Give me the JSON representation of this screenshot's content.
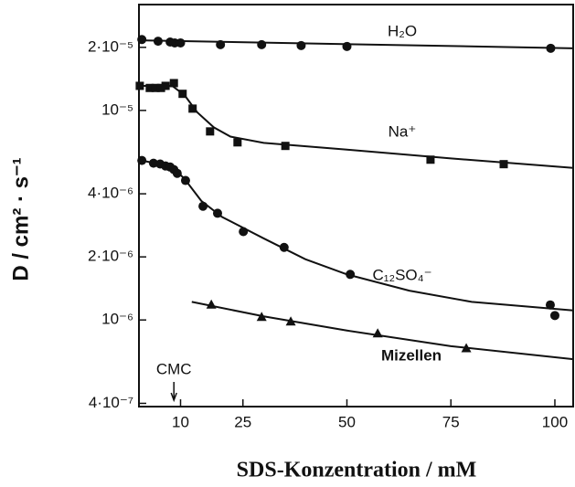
{
  "chart_data": {
    "type": "scatter",
    "xlabel": "SDS-Konzentration / mM",
    "ylabel": "D / cm² · s⁻¹",
    "yscale": "log",
    "grid": false,
    "color": "#111111",
    "xlim": [
      0,
      104.4
    ],
    "ylim": [
      3.86e-07,
      3.2e-05
    ],
    "xticks": [
      10,
      25,
      50,
      75,
      100
    ],
    "yticks": [
      {
        "value": 2e-05,
        "label": "2·10⁻⁵"
      },
      {
        "value": 1e-05,
        "label": "10⁻⁵"
      },
      {
        "value": 4e-06,
        "label": "4·10⁻⁶"
      },
      {
        "value": 2e-06,
        "label": "2·10⁻⁶"
      },
      {
        "value": 1e-06,
        "label": "10⁻⁶"
      },
      {
        "value": 4e-07,
        "label": "4·10⁻⁷"
      }
    ],
    "annotations": [
      {
        "text": "CMC",
        "x": 8.4
      }
    ],
    "series": [
      {
        "name": "H₂O",
        "marker": "circle",
        "x": [
          0.7,
          4.6,
          7.5,
          8.6,
          10,
          19.6,
          29.5,
          39,
          50,
          99
        ],
        "values": [
          2.18e-05,
          2.14e-05,
          2.12e-05,
          2.1e-05,
          2.1e-05,
          2.06e-05,
          2.06e-05,
          2.04e-05,
          2.02e-05,
          1.98e-05
        ],
        "fit": {
          "x": [
            0,
            104.4
          ],
          "values": [
            2.16e-05,
            1.98e-05
          ]
        }
      },
      {
        "name": "Na⁺",
        "marker": "square",
        "x": [
          0.2,
          2.6,
          4,
          5.3,
          6.4,
          8.4,
          10.5,
          12.9,
          17.1,
          23.7,
          35.2,
          70.1,
          87.7
        ],
        "values": [
          1.31e-05,
          1.28e-05,
          1.28e-05,
          1.28e-05,
          1.31e-05,
          1.35e-05,
          1.2e-05,
          1.02e-05,
          7.94e-06,
          7.04e-06,
          6.77e-06,
          5.82e-06,
          5.54e-06
        ],
        "fit": {
          "x": [
            0,
            8,
            11,
            14,
            18,
            22,
            30,
            50,
            75,
            104.4
          ],
          "values": [
            1.31e-05,
            1.31e-05,
            1.18e-05,
            9.8e-06,
            8.3e-06,
            7.5e-06,
            7e-06,
            6.5e-06,
            5.9e-06,
            5.32e-06
          ]
        }
      },
      {
        "name": "C₁₂SO₄⁻",
        "marker": "circle",
        "x": [
          0.7,
          3.5,
          5.1,
          6.4,
          7.5,
          8.4,
          9.2,
          11.2,
          15.4,
          18.9,
          25.1,
          34.9,
          50.8,
          98.9,
          100
        ],
        "values": [
          5.77e-06,
          5.6e-06,
          5.55e-06,
          5.43e-06,
          5.37e-06,
          5.22e-06,
          5.01e-06,
          4.63e-06,
          3.49e-06,
          3.23e-06,
          2.64e-06,
          2.22e-06,
          1.65e-06,
          1.18e-06,
          1.05e-06
        ],
        "fit": {
          "x": [
            0,
            8,
            11,
            15,
            20,
            30,
            40,
            50,
            65,
            80,
            104.4
          ],
          "values": [
            5.8e-06,
            5.4e-06,
            4.7e-06,
            3.7e-06,
            3.1e-06,
            2.45e-06,
            1.95e-06,
            1.65e-06,
            1.38e-06,
            1.22e-06,
            1.11e-06
          ]
        }
      },
      {
        "name": "Mizellen",
        "marker": "triangle",
        "x": [
          17.4,
          29.5,
          36.5,
          57.4,
          78.7
        ],
        "values": [
          1.18e-06,
          1.03e-06,
          9.8e-07,
          8.6e-07,
          7.3e-07
        ],
        "fit": {
          "x": [
            12.7,
            30,
            50,
            75,
            104.4
          ],
          "values": [
            1.22e-06,
            1.04e-06,
            8.9e-07,
            7.5e-07,
            6.5e-07
          ]
        }
      }
    ]
  }
}
